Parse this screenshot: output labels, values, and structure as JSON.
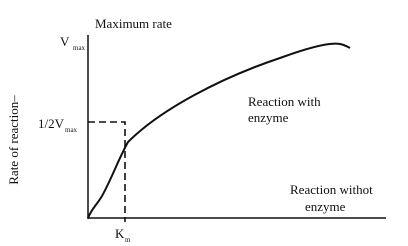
{
  "axis_label": "Rate of reaction–",
  "vmax": {
    "symbol": "V",
    "subscript": "max"
  },
  "max_label": "Maximum rate",
  "half_vmax": {
    "symbol": "1/2V",
    "subscript": "max"
  },
  "km": {
    "symbol": "K",
    "subscript": "m"
  },
  "with_enzyme": [
    "Reaction with",
    "enzyme"
  ],
  "without_enzyme": [
    "Reaction withot",
    "enzyme"
  ]
}
